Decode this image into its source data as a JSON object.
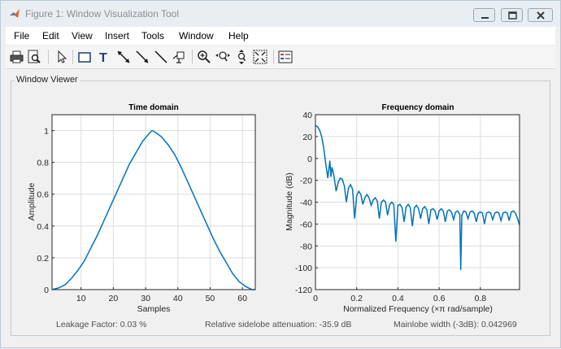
{
  "window": {
    "title": "Figure 1: Window Visualization Tool",
    "controls": {
      "minimize_icon": "minimize-icon",
      "maximize_icon": "maximize-icon",
      "close_icon": "close-icon"
    }
  },
  "menu": {
    "items": [
      "File",
      "Edit",
      "View",
      "Insert",
      "Tools",
      "Window",
      "Help"
    ]
  },
  "toolbar": {
    "icons": [
      "print-icon",
      "print-preview-icon",
      "select-arrow-icon",
      "insert-rectangle-icon",
      "insert-text-icon",
      "insert-double-arrow-icon",
      "insert-arrow-icon",
      "insert-line-icon",
      "data-cursor-icon",
      "zoom-in-icon",
      "zoom-out-icon",
      "pan-icon",
      "fit-view-icon",
      "legend-icon"
    ]
  },
  "panel": {
    "title": "Window Viewer"
  },
  "status": {
    "leakage": "Leakage Factor: 0.03 %",
    "sidelobe": "Relative sidelobe attenuation: -35.9 dB",
    "mainlobe": "Mainlobe width (-3dB): 0.042969"
  },
  "colors": {
    "line": "#0072bd",
    "grid": "#dcdcdc",
    "axes": "#262626"
  },
  "chart_data": [
    {
      "type": "line",
      "title": "Time domain",
      "xlabel": "Samples",
      "ylabel": "Amplitude",
      "xlim": [
        1,
        64
      ],
      "ylim": [
        0,
        1.1
      ],
      "xticks": [
        10,
        20,
        30,
        40,
        50,
        60
      ],
      "yticks": [
        0,
        0.2,
        0.4,
        0.6,
        0.8,
        1
      ],
      "xtick_labels": [
        "10",
        "20",
        "30",
        "40",
        "50",
        "60"
      ],
      "ytick_labels": [
        "0",
        "0.2",
        "0.4",
        "0.6",
        "0.8",
        "1"
      ],
      "grid": true,
      "series": [
        {
          "x": [
            1,
            3,
            5,
            7,
            9,
            11,
            13,
            15,
            17,
            19,
            21,
            23,
            25,
            27,
            29,
            31,
            32,
            33,
            35,
            37,
            39,
            41,
            43,
            45,
            47,
            49,
            51,
            53,
            55,
            57,
            59,
            61,
            63,
            64
          ],
          "y": [
            0.0,
            0.01,
            0.03,
            0.07,
            0.12,
            0.18,
            0.26,
            0.34,
            0.43,
            0.52,
            0.61,
            0.7,
            0.79,
            0.86,
            0.93,
            0.98,
            1.0,
            0.99,
            0.96,
            0.91,
            0.85,
            0.77,
            0.68,
            0.59,
            0.5,
            0.41,
            0.32,
            0.24,
            0.17,
            0.1,
            0.05,
            0.02,
            0.0,
            0.0
          ]
        }
      ]
    },
    {
      "type": "line",
      "title": "Frequency domain",
      "xlabel": "Normalized Frequency  (×π rad/sample)",
      "ylabel": "Magnitude (dB)",
      "xlim": [
        0,
        0.99
      ],
      "ylim": [
        -120,
        40
      ],
      "xticks": [
        0,
        0.2,
        0.4,
        0.6,
        0.8
      ],
      "yticks": [
        -120,
        -100,
        -80,
        -60,
        -40,
        -20,
        0,
        20,
        40
      ],
      "xtick_labels": [
        "0",
        "0.2",
        "0.4",
        "0.6",
        "0.8"
      ],
      "ytick_labels": [
        "-120",
        "-100",
        "-80",
        "-60",
        "-40",
        "-20",
        "0",
        "20",
        "40"
      ],
      "grid": true,
      "series": [
        {
          "x": [
            0.0,
            0.01,
            0.02,
            0.03,
            0.04,
            0.05,
            0.06,
            0.07,
            0.075,
            0.08,
            0.09,
            0.1,
            0.11,
            0.12,
            0.13,
            0.14,
            0.15,
            0.16,
            0.17,
            0.18,
            0.19,
            0.2,
            0.21,
            0.22,
            0.23,
            0.24,
            0.25,
            0.26,
            0.27,
            0.28,
            0.29,
            0.3,
            0.31,
            0.32,
            0.33,
            0.34,
            0.35,
            0.36,
            0.37,
            0.38,
            0.39,
            0.4,
            0.41,
            0.42,
            0.43,
            0.44,
            0.45,
            0.46,
            0.47,
            0.48,
            0.49,
            0.5,
            0.51,
            0.52,
            0.53,
            0.54,
            0.55,
            0.56,
            0.57,
            0.58,
            0.59,
            0.6,
            0.61,
            0.62,
            0.63,
            0.64,
            0.65,
            0.66,
            0.67,
            0.68,
            0.69,
            0.7,
            0.705,
            0.71,
            0.72,
            0.73,
            0.74,
            0.75,
            0.76,
            0.77,
            0.78,
            0.79,
            0.8,
            0.81,
            0.82,
            0.83,
            0.84,
            0.85,
            0.86,
            0.87,
            0.88,
            0.89,
            0.9,
            0.91,
            0.92,
            0.93,
            0.94,
            0.95,
            0.96,
            0.97,
            0.98,
            0.99
          ],
          "y": [
            30,
            29,
            26,
            20,
            10,
            -5,
            -18,
            -2,
            -17,
            -8,
            -16,
            -30,
            -22,
            -18,
            -19,
            -25,
            -40,
            -27,
            -24,
            -28,
            -55,
            -34,
            -30,
            -33,
            -42,
            -36,
            -33,
            -36,
            -43,
            -38,
            -36,
            -39,
            -55,
            -40,
            -38,
            -40,
            -52,
            -42,
            -40,
            -42,
            -76,
            -43,
            -42,
            -45,
            -58,
            -44,
            -42,
            -45,
            -62,
            -45,
            -43,
            -46,
            -55,
            -46,
            -44,
            -47,
            -60,
            -47,
            -46,
            -48,
            -56,
            -48,
            -46,
            -48,
            -58,
            -48,
            -47,
            -49,
            -56,
            -49,
            -48,
            -51,
            -102,
            -52,
            -48,
            -49,
            -55,
            -49,
            -48,
            -50,
            -58,
            -50,
            -49,
            -50,
            -60,
            -50,
            -49,
            -50,
            -56,
            -50,
            -49,
            -50,
            -57,
            -50,
            -49,
            -50,
            -57,
            -49,
            -48,
            -50,
            -55,
            -61
          ]
        }
      ]
    }
  ]
}
